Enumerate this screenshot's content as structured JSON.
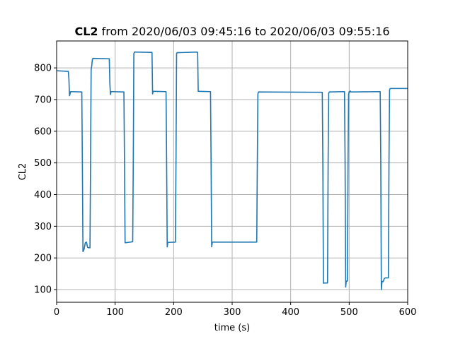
{
  "chart_data": {
    "type": "line",
    "title_bold": "CL2",
    "title_rest": " from 2020/06/03 09:45:16 to 2020/06/03 09:55:16",
    "xlabel": "time (s)",
    "ylabel": "CL2",
    "xlim": [
      0,
      600
    ],
    "ylim": [
      60,
      885
    ],
    "xticks": [
      0,
      100,
      200,
      300,
      400,
      500,
      600
    ],
    "yticks": [
      100,
      200,
      300,
      400,
      500,
      600,
      700,
      800
    ],
    "grid": true,
    "color": "#1f77b4",
    "series": [
      {
        "x": [
          0,
          20,
          21,
          22,
          24,
          43,
          44,
          45,
          47,
          49,
          51,
          53,
          55,
          57,
          58,
          59,
          60,
          61,
          62,
          90,
          91,
          92,
          93,
          94,
          115,
          116,
          117,
          118,
          130,
          131,
          132,
          133,
          134,
          163,
          164,
          165,
          166,
          187,
          188,
          189,
          190,
          203,
          204,
          205,
          206,
          207,
          240,
          241,
          242,
          243,
          263,
          264,
          265,
          266,
          267,
          342,
          343,
          344,
          345,
          454,
          455,
          456,
          457,
          463,
          464,
          465,
          466,
          492,
          493,
          494,
          495,
          497,
          498,
          499,
          500,
          501,
          502,
          503,
          553,
          554,
          555,
          556,
          557,
          558,
          560,
          561,
          562,
          567,
          568,
          569,
          570,
          571,
          600
        ],
        "y": [
          791,
          789,
          765,
          712,
          725,
          724,
          500,
          220,
          228,
          248,
          250,
          233,
          232,
          232,
          500,
          795,
          806,
          825,
          830,
          829,
          750,
          716,
          725,
          725,
          724,
          500,
          248,
          248,
          251,
          500,
          845,
          850,
          850,
          849,
          718,
          726,
          726,
          725,
          500,
          235,
          249,
          250,
          500,
          845,
          848,
          848,
          850,
          848,
          726,
          726,
          725,
          500,
          235,
          249,
          250,
          250,
          500,
          718,
          724,
          723,
          500,
          120,
          121,
          121,
          500,
          720,
          724,
          725,
          500,
          108,
          127,
          127,
          500,
          717,
          725,
          724,
          727,
          724,
          725,
          500,
          100,
          125,
          126,
          125,
          135,
          136,
          137,
          137,
          500,
          730,
          735,
          735,
          735
        ]
      }
    ]
  }
}
